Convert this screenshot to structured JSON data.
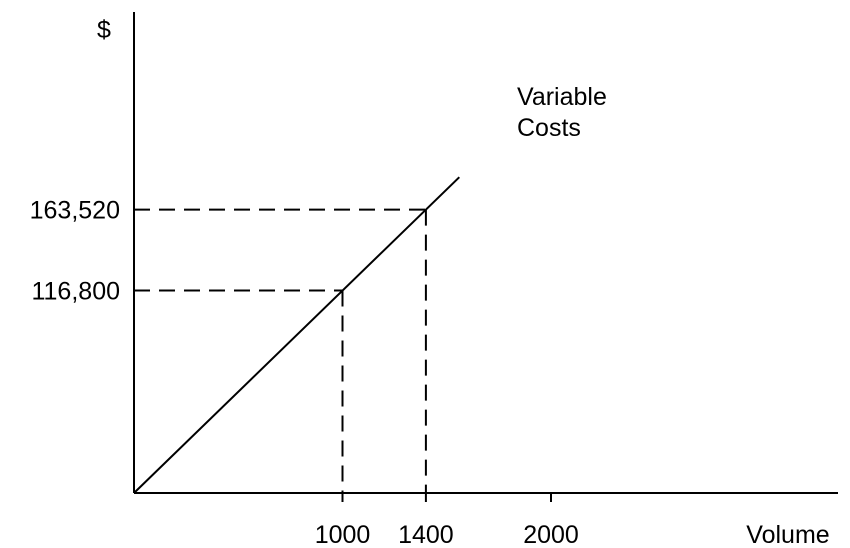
{
  "chart_data": {
    "type": "line",
    "title": "",
    "xlabel": "Volume",
    "ylabel": "$",
    "xlim": [
      0,
      3550
    ],
    "ylim": [
      0,
      300000
    ],
    "x_ticks": [
      1000,
      1400,
      2000
    ],
    "x_tick_labels": [
      "1000",
      "1400",
      "2000"
    ],
    "y_ticks": [
      116800,
      163520
    ],
    "y_tick_labels": [
      "116,800",
      "163,520"
    ],
    "series": [
      {
        "name": "Variable Costs",
        "label_lines": [
          "Variable",
          "Costs"
        ],
        "points": [
          [
            0,
            0
          ],
          [
            1560,
            182208
          ]
        ]
      }
    ],
    "reference_points": [
      {
        "x": 1000,
        "y": 116800
      },
      {
        "x": 1400,
        "y": 163520
      }
    ],
    "grid": false,
    "legend": "none"
  }
}
